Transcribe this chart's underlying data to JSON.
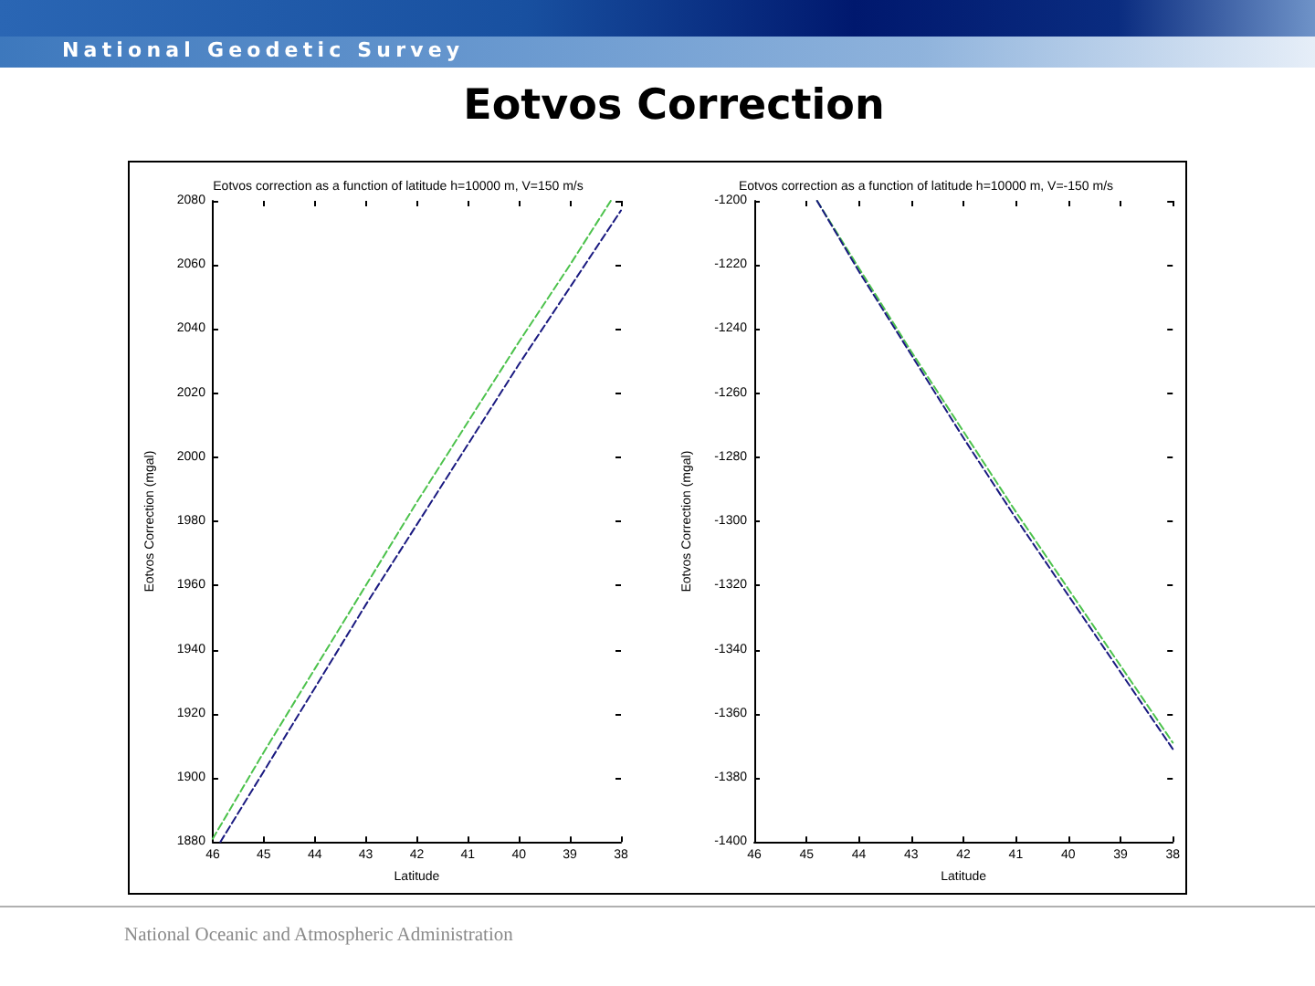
{
  "chart_data": [
    {
      "type": "other",
      "title": "Eotvos Correction",
      "annotations": [
        "National Geodetic Survey",
        "National Oceanic and Atmospheric Administration"
      ]
    },
    {
      "type": "line",
      "title": "Eotvos correction as a function of latitude h=10000 m, V=150 m/s",
      "xlabel": "Latitude",
      "ylabel": "Eotvos Correction (mgal)",
      "xlim": [
        46,
        38
      ],
      "xticks": [
        46,
        45,
        44,
        43,
        42,
        41,
        40,
        39,
        38
      ],
      "ylim": [
        1880,
        2080
      ],
      "yticks": [
        1880,
        1900,
        1920,
        1940,
        1960,
        1980,
        2000,
        2020,
        2040,
        2060,
        2080
      ],
      "grid": false,
      "marker": "none",
      "line_style": "dashed",
      "series": [
        {
          "color": "#4cc24c",
          "x": [
            46,
            45,
            44,
            43,
            42,
            41,
            40,
            39,
            38.2
          ],
          "values": [
            1881,
            1908,
            1934,
            1960,
            1986,
            2011,
            2036,
            2060,
            2080
          ]
        },
        {
          "color": "#1a1a80",
          "x": [
            45.85,
            45,
            44,
            43,
            42,
            41,
            40,
            39,
            38
          ],
          "values": [
            1880,
            1902,
            1928,
            1954,
            1979,
            2004,
            2029,
            2053,
            2077
          ]
        }
      ]
    },
    {
      "type": "line",
      "title": "Eotvos correction as a function of latitude h=10000 m, V=-150 m/s",
      "xlabel": "Latitude",
      "ylabel": "Eotvos Correction (mgal)",
      "xlim": [
        46,
        38
      ],
      "xticks": [
        46,
        45,
        44,
        43,
        42,
        41,
        40,
        39,
        38
      ],
      "ylim": [
        -1400,
        -1200
      ],
      "yticks": [
        -1400,
        -1380,
        -1360,
        -1340,
        -1320,
        -1300,
        -1280,
        -1260,
        -1240,
        -1220,
        -1200
      ],
      "grid": false,
      "marker": "none",
      "line_style": "dashed",
      "series": [
        {
          "color": "#4cc24c",
          "x": [
            44.8,
            44,
            43,
            42,
            41,
            40,
            39,
            38
          ],
          "values": [
            -1200,
            -1221,
            -1247,
            -1272,
            -1297,
            -1321,
            -1345,
            -1369
          ]
        },
        {
          "color": "#1a1a80",
          "x": [
            44.8,
            44,
            43,
            42,
            41,
            40,
            39,
            38
          ],
          "values": [
            -1200,
            -1222,
            -1248,
            -1274,
            -1299,
            -1323,
            -1347,
            -1371
          ]
        }
      ]
    }
  ]
}
